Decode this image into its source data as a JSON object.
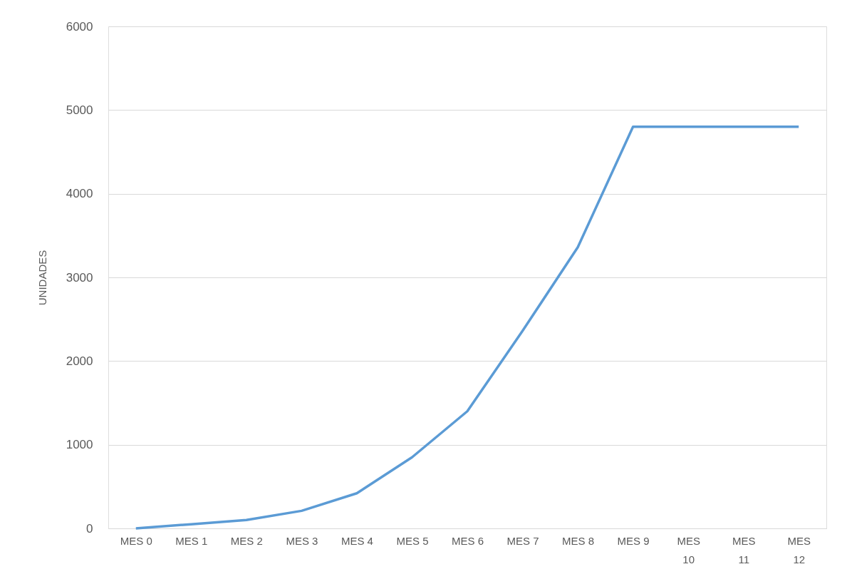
{
  "chart_data": {
    "type": "line",
    "ylabel": "UNIDADES",
    "categories": [
      "MES 0",
      "MES 1",
      "MES 2",
      "MES 3",
      "MES 4",
      "MES 5",
      "MES 6",
      "MES 7",
      "MES 8",
      "MES 9",
      "MES 10",
      "MES 11",
      "MES 12"
    ],
    "series": [
      {
        "color": "#5b9bd5",
        "values": [
          0,
          50,
          100,
          210,
          420,
          850,
          1400,
          2360,
          3360,
          4800,
          4800,
          4800,
          4800
        ]
      }
    ],
    "ylim": [
      0,
      6000
    ],
    "yticks": [
      0,
      1000,
      2000,
      3000,
      4000,
      5000,
      6000
    ],
    "grid": "y",
    "marker": "none",
    "line_style": "solid"
  }
}
